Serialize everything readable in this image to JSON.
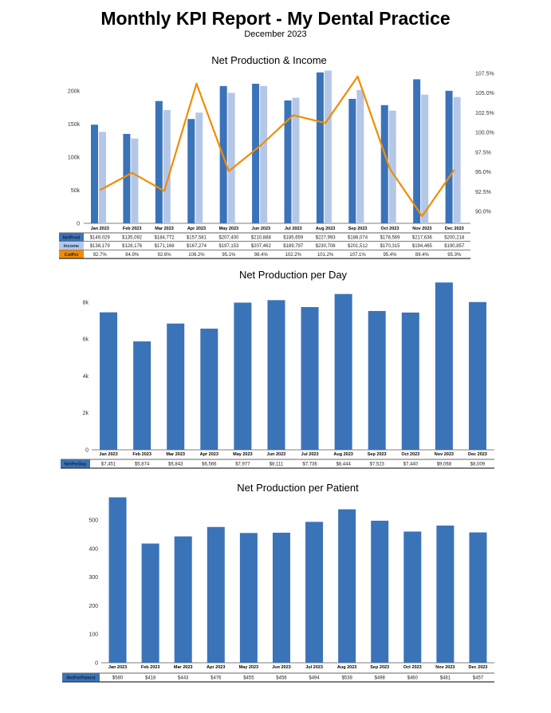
{
  "report": {
    "title": "Monthly KPI Report - My Dental Practice",
    "subtitle": "December 2023"
  },
  "colors": {
    "netprod": "#3a73b8",
    "income": "#b4c7e7",
    "colpct": "#f28c00"
  },
  "chart_data": [
    {
      "type": "bar",
      "title": "Net Production & Income",
      "categories": [
        "Jan 2023",
        "Feb 2023",
        "Mar 2023",
        "Apr 2023",
        "May 2023",
        "Jun 2023",
        "Jul 2023",
        "Aug 2023",
        "Sep 2023",
        "Oct 2023",
        "Nov 2023",
        "Dec 2023"
      ],
      "series": [
        {
          "name": "NetProd",
          "kind": "bar",
          "values": [
            149029,
            135092,
            184772,
            157581,
            207400,
            210888,
            185659,
            227993,
            188074,
            178569,
            217636,
            200218
          ],
          "labels": [
            "$149,029",
            "$135,092",
            "$184,772",
            "$157,581",
            "$207,400",
            "$210,888",
            "$185,659",
            "$227,993",
            "$188,074",
            "$178,569",
            "$217,636",
            "$200,218"
          ]
        },
        {
          "name": "Income",
          "kind": "bar",
          "values": [
            138179,
            128176,
            171168,
            167274,
            197153,
            207462,
            189797,
            230708,
            201512,
            170315,
            194465,
            190857
          ],
          "labels": [
            "$138,179",
            "$128,176",
            "$171,168",
            "$167,274",
            "$197,153",
            "$207,462",
            "$189,797",
            "$230,708",
            "$201,512",
            "$170,315",
            "$194,465",
            "$190,857"
          ]
        },
        {
          "name": "ColPct",
          "kind": "line",
          "axis": "right",
          "values": [
            92.7,
            94.9,
            92.6,
            106.2,
            95.1,
            98.4,
            102.2,
            101.2,
            107.1,
            95.4,
            89.4,
            95.3
          ],
          "labels": [
            "92.7%",
            "94.9%",
            "92.6%",
            "106.2%",
            "95.1%",
            "98.4%",
            "102.2%",
            "101.2%",
            "107.1%",
            "95.4%",
            "89.4%",
            "95.3%"
          ]
        }
      ],
      "ylim": [
        0,
        235000
      ],
      "yticks": [
        "0",
        "50k",
        "100k",
        "150k",
        "200k"
      ],
      "y2lim": [
        88.5,
        108.2
      ],
      "y2ticks": [
        "90.0%",
        "92.5%",
        "95.0%",
        "97.5%",
        "100.0%",
        "102.5%",
        "105.0%",
        "107.5%"
      ],
      "grid": false
    },
    {
      "type": "bar",
      "title": "Net Production per Day",
      "categories": [
        "Jan 2023",
        "Feb 2023",
        "Mar 2023",
        "Apr 2023",
        "May 2023",
        "Jun 2023",
        "Jul 2023",
        "Aug 2023",
        "Sep 2023",
        "Oct 2023",
        "Nov 2023",
        "Dec 2023"
      ],
      "series": [
        {
          "name": "NetPerDay",
          "values": [
            7451,
            5874,
            6843,
            6566,
            7977,
            8111,
            7736,
            8444,
            7523,
            7440,
            9068,
            8009
          ],
          "labels": [
            "$7,451",
            "$5,874",
            "$6,843",
            "$6,566",
            "$7,977",
            "$8,111",
            "$7,736",
            "$8,444",
            "$7,523",
            "$7,440",
            "$9,068",
            "$8,009"
          ]
        }
      ],
      "ylim": [
        0,
        9250
      ],
      "yticks": [
        "0",
        "2k",
        "4k",
        "6k",
        "8k"
      ],
      "grid": false
    },
    {
      "type": "bar",
      "title": "Net Production per Patient",
      "categories": [
        "Jan 2023",
        "Feb 2023",
        "Mar 2023",
        "Apr 2023",
        "May 2023",
        "Jun 2023",
        "Jul 2023",
        "Aug 2023",
        "Sep 2023",
        "Oct 2023",
        "Nov 2023",
        "Dec 2023"
      ],
      "series": [
        {
          "name": "NetPerPatient",
          "values": [
            580,
            418,
            443,
            476,
            455,
            456,
            494,
            538,
            498,
            460,
            481,
            457
          ],
          "labels": [
            "$580",
            "$418",
            "$443",
            "$476",
            "$455",
            "$456",
            "$494",
            "$538",
            "$498",
            "$460",
            "$481",
            "$457"
          ]
        }
      ],
      "ylim": [
        0,
        590
      ],
      "yticks": [
        "0",
        "100",
        "200",
        "300",
        "400",
        "500"
      ],
      "grid": false
    }
  ]
}
